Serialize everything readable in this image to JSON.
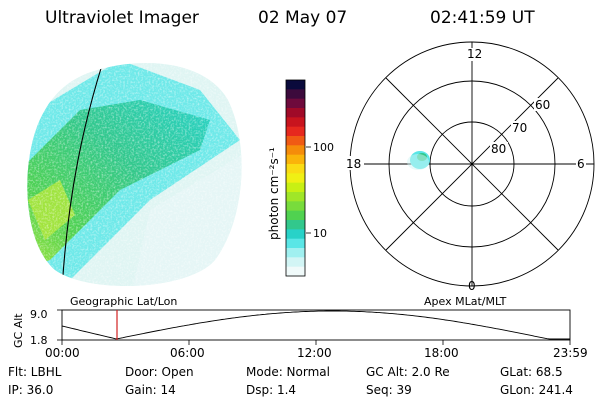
{
  "header": {
    "title": "Ultraviolet Imager",
    "date": "02 May 07",
    "time": "02:41:59 UT"
  },
  "colorbar": {
    "label": "photon cm⁻²s⁻¹",
    "ticks": [
      "100",
      "10"
    ],
    "colors": [
      "#0a0a3c",
      "#3c0a3c",
      "#6e0a3c",
      "#a00a28",
      "#c8141e",
      "#e6281e",
      "#f05a14",
      "#f58c0a",
      "#fab40a",
      "#fadc14",
      "#f0f014",
      "#c8f014",
      "#a0e628",
      "#78dc3c",
      "#50d250",
      "#32c88c",
      "#28d2c8",
      "#5ae6e6",
      "#a0f0f0",
      "#d2f5f5",
      "#f0fafa"
    ]
  },
  "polar": {
    "mlt_labels": {
      "top": "12",
      "left": "18",
      "right": "6",
      "bottom": "0"
    },
    "lat_labels": [
      "60",
      "70",
      "80"
    ]
  },
  "timeline": {
    "ylabel": "GC Alt",
    "yticks": [
      "9.0",
      "1.8"
    ],
    "left_caption": "Geographic Lat/Lon",
    "right_caption": "Apex MLat/MLT",
    "xticks": [
      "00:00",
      "06:00",
      "12:00",
      "18:00",
      "23:59"
    ]
  },
  "info": {
    "flt": "Flt: LBHL",
    "door": "Door: Open",
    "mode": "Mode: Normal",
    "gcalt": "GC Alt: 2.0 Re",
    "glat": "GLat:  68.5",
    "ip": "IP: 36.0",
    "gain": "Gain: 14",
    "dsp": "Dsp:     1.4",
    "seq": "Seq: 39",
    "glon": "GLon: 241.4"
  }
}
